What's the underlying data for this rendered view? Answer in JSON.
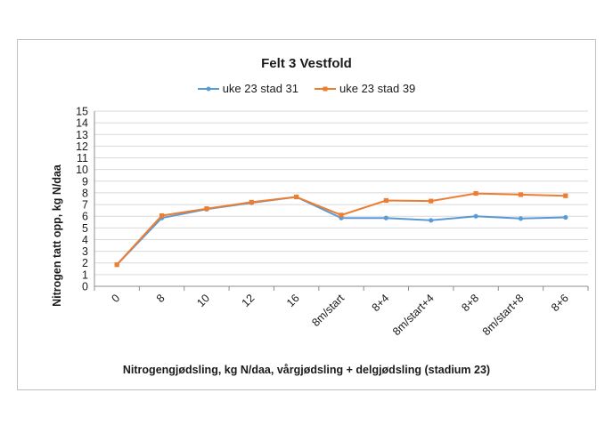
{
  "chart_data": {
    "type": "line",
    "title": "Felt 3 Vestfold",
    "xlabel": "Nitrogengjødsling, kg N/daa, vårgjødsling + delgjødsling (stadium 23)",
    "ylabel": "Nitrogen tatt opp, kg N/daa",
    "categories": [
      "0",
      "8",
      "10",
      "12",
      "16",
      "8m/start",
      "8+4",
      "8m/start+4",
      "8+8",
      "8m/start+8",
      "8+6"
    ],
    "ylim": [
      0,
      15
    ],
    "yticks": [
      0,
      1,
      2,
      3,
      4,
      5,
      6,
      7,
      8,
      9,
      10,
      11,
      12,
      13,
      14,
      15
    ],
    "grid": true,
    "legend_position": "top-center",
    "series": [
      {
        "name": "uke 23 stad 31",
        "color": "#5b9bd5",
        "values": [
          1.85,
          5.85,
          6.6,
          7.15,
          7.65,
          5.85,
          5.85,
          5.65,
          6.0,
          5.8,
          5.9
        ]
      },
      {
        "name": "uke 23 stad 39",
        "color": "#ed7d31",
        "values": [
          1.85,
          6.05,
          6.65,
          7.2,
          7.65,
          6.1,
          7.35,
          7.3,
          7.95,
          7.85,
          7.75
        ]
      }
    ]
  }
}
